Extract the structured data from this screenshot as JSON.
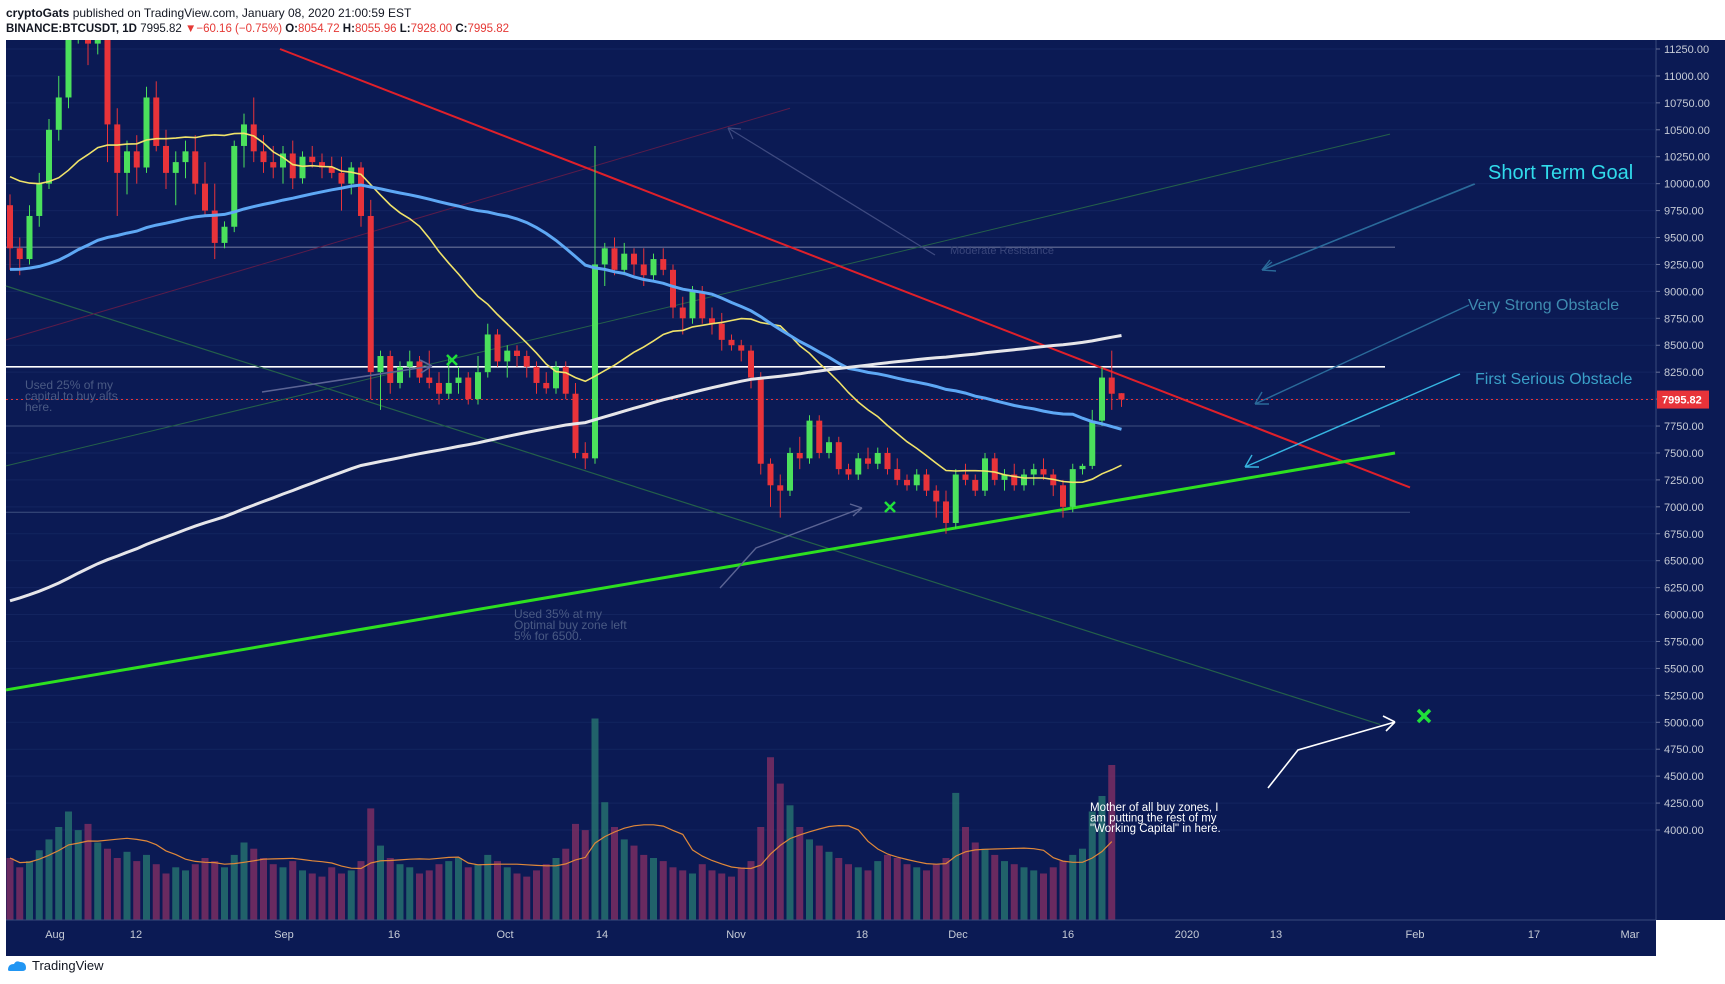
{
  "header": {
    "author": "cryptoGats",
    "published": "published on TradingView.com, January 08, 2020 21:00:59 EST",
    "symbol": "BINANCE:BTCUSDT, 1D",
    "last": "7995.82",
    "change": "−60.16 (−0.75%)",
    "o_label": "O:",
    "o": "8054.72",
    "h_label": "H:",
    "h": "8055.96",
    "l_label": "L:",
    "l": "7928.00",
    "c_label": "C:",
    "c": "7995.82"
  },
  "footer": {
    "brand": "TradingView"
  },
  "colors": {
    "background": "#0b1a54",
    "candle_up": "#4be05c",
    "candle_down": "#e8333a",
    "ma_yellow": "#f0e36a",
    "ma_blue": "#5ea8f5",
    "ma_white": "#e6e6ea",
    "trend_red": "#e0202a",
    "trend_green": "#2de020"
  },
  "chart_data": {
    "type": "candlestick",
    "y_axis_ticks": [
      "11250.00",
      "11000.00",
      "10750.00",
      "10500.00",
      "10250.00",
      "10000.00",
      "9750.00",
      "9500.00",
      "9250.00",
      "9000.00",
      "8750.00",
      "8500.00",
      "8250.00",
      "8000.00",
      "7750.00",
      "7500.00",
      "7250.00",
      "7000.00",
      "6750.00",
      "6500.00",
      "6250.00",
      "6000.00",
      "5750.00",
      "5500.00",
      "5250.00",
      "5000.00",
      "4750.00",
      "4500.00",
      "4250.00",
      "4000.00"
    ],
    "x_axis_labels": [
      "Aug",
      "12",
      "Sep",
      "16",
      "Oct",
      "14",
      "Nov",
      "18",
      "Dec",
      "16",
      "2020",
      "13",
      "Feb",
      "17",
      "Mar"
    ],
    "ylim": [
      3950,
      11380
    ],
    "last_price_label": "7995.82",
    "annotations": {
      "short_term_goal": "Short Term Goal",
      "very_strong_obstacle": "Very Strong Obstacle",
      "first_serious_obstacle": "First Serious Obstacle",
      "used25": [
        "Used 25% of my",
        "capital to buy alts",
        "here."
      ],
      "used35": [
        "Used 35% at my",
        "Optimal buy zone left",
        "5% for 6500."
      ],
      "mother": [
        "Mother of all buy zones, I",
        "am putting the rest of my",
        "\"Working Capital\" in here."
      ],
      "moderate_resistance": "Moderate Resistance"
    },
    "series": [
      {
        "name": "candles",
        "values": [
          [
            9800,
            9900,
            9200,
            9400
          ],
          [
            9400,
            9500,
            9150,
            9300
          ],
          [
            9300,
            9800,
            9250,
            9700
          ],
          [
            9700,
            10100,
            9600,
            10000
          ],
          [
            10000,
            10600,
            9950,
            10500
          ],
          [
            10500,
            11000,
            10400,
            10800
          ],
          [
            10800,
            11600,
            10700,
            11500
          ],
          [
            11500,
            12000,
            11300,
            11800
          ],
          [
            11800,
            11900,
            11100,
            11300
          ],
          [
            11300,
            11550,
            11200,
            11400
          ],
          [
            11400,
            11500,
            10200,
            10550
          ],
          [
            10550,
            10700,
            9700,
            10100
          ],
          [
            10100,
            10400,
            9900,
            10300
          ],
          [
            10300,
            10450,
            10000,
            10150
          ],
          [
            10150,
            10900,
            10100,
            10800
          ],
          [
            10800,
            10950,
            10300,
            10350
          ],
          [
            10350,
            10500,
            9950,
            10100
          ],
          [
            10100,
            10300,
            9800,
            10200
          ],
          [
            10200,
            10400,
            10050,
            10300
          ],
          [
            10300,
            10450,
            9900,
            10000
          ],
          [
            10000,
            10200,
            9700,
            9750
          ],
          [
            9750,
            10000,
            9300,
            9450
          ],
          [
            9450,
            9650,
            9400,
            9600
          ],
          [
            9600,
            10400,
            9550,
            10350
          ],
          [
            10350,
            10650,
            10150,
            10550
          ],
          [
            10550,
            10800,
            10200,
            10300
          ],
          [
            10300,
            10450,
            10100,
            10200
          ],
          [
            10200,
            10350,
            10050,
            10150
          ],
          [
            10150,
            10350,
            10000,
            10280
          ],
          [
            10280,
            10400,
            9950,
            10050
          ],
          [
            10050,
            10300,
            10000,
            10250
          ],
          [
            10250,
            10350,
            10150,
            10200
          ],
          [
            10200,
            10280,
            10050,
            10150
          ],
          [
            10150,
            10250,
            10050,
            10100
          ],
          [
            10100,
            10250,
            9750,
            10000
          ],
          [
            10000,
            10200,
            9900,
            10150
          ],
          [
            10150,
            10200,
            9600,
            9700
          ],
          [
            9700,
            9850,
            8000,
            8250
          ],
          [
            8250,
            8450,
            7900,
            8400
          ],
          [
            8400,
            8450,
            8050,
            8150
          ],
          [
            8150,
            8350,
            8100,
            8300
          ],
          [
            8300,
            8450,
            8200,
            8350
          ],
          [
            8350,
            8400,
            8150,
            8200
          ],
          [
            8200,
            8450,
            8100,
            8150
          ],
          [
            8150,
            8250,
            7950,
            8050
          ],
          [
            8050,
            8400,
            8000,
            8150
          ],
          [
            8150,
            8300,
            8050,
            8200
          ],
          [
            8200,
            8250,
            7950,
            8000
          ],
          [
            8000,
            8400,
            7950,
            8250
          ],
          [
            8250,
            8700,
            8200,
            8600
          ],
          [
            8600,
            8650,
            8300,
            8350
          ],
          [
            8350,
            8500,
            8200,
            8450
          ],
          [
            8450,
            8500,
            8300,
            8400
          ],
          [
            8400,
            8450,
            8200,
            8300
          ],
          [
            8300,
            8350,
            8050,
            8150
          ],
          [
            8150,
            8250,
            8050,
            8100
          ],
          [
            8100,
            8350,
            8050,
            8300
          ],
          [
            8300,
            8350,
            8000,
            8050
          ],
          [
            8050,
            8150,
            7450,
            7500
          ],
          [
            7500,
            7600,
            7350,
            7450
          ],
          [
            7450,
            10350,
            7400,
            9250
          ],
          [
            9250,
            9450,
            9050,
            9400
          ],
          [
            9400,
            9500,
            9150,
            9200
          ],
          [
            9200,
            9450,
            9150,
            9350
          ],
          [
            9350,
            9400,
            9150,
            9250
          ],
          [
            9250,
            9400,
            9050,
            9150
          ],
          [
            9150,
            9350,
            9100,
            9300
          ],
          [
            9300,
            9400,
            9150,
            9200
          ],
          [
            9200,
            9250,
            8750,
            8850
          ],
          [
            8850,
            8950,
            8600,
            8750
          ],
          [
            8750,
            9050,
            8700,
            9000
          ],
          [
            9000,
            9050,
            8700,
            8750
          ],
          [
            8750,
            8850,
            8600,
            8700
          ],
          [
            8700,
            8800,
            8450,
            8550
          ],
          [
            8550,
            8600,
            8450,
            8500
          ],
          [
            8500,
            8550,
            8350,
            8450
          ],
          [
            8450,
            8500,
            8100,
            8200
          ],
          [
            8200,
            8250,
            7300,
            7400
          ],
          [
            7400,
            7450,
            7000,
            7200
          ],
          [
            7200,
            7300,
            6900,
            7150
          ],
          [
            7150,
            7550,
            7100,
            7500
          ],
          [
            7500,
            7650,
            7350,
            7450
          ],
          [
            7450,
            7850,
            7400,
            7800
          ],
          [
            7800,
            7850,
            7450,
            7500
          ],
          [
            7500,
            7650,
            7450,
            7600
          ],
          [
            7600,
            7650,
            7300,
            7350
          ],
          [
            7350,
            7400,
            7250,
            7300
          ],
          [
            7300,
            7500,
            7250,
            7450
          ],
          [
            7450,
            7550,
            7350,
            7400
          ],
          [
            7400,
            7550,
            7350,
            7500
          ],
          [
            7500,
            7550,
            7300,
            7350
          ],
          [
            7350,
            7450,
            7200,
            7250
          ],
          [
            7250,
            7300,
            7150,
            7200
          ],
          [
            7200,
            7350,
            7150,
            7300
          ],
          [
            7300,
            7350,
            7100,
            7150
          ],
          [
            7150,
            7200,
            6900,
            7050
          ],
          [
            7050,
            7150,
            6750,
            6850
          ],
          [
            6850,
            7350,
            6800,
            7300
          ],
          [
            7300,
            7400,
            7200,
            7250
          ],
          [
            7250,
            7300,
            7100,
            7150
          ],
          [
            7150,
            7500,
            7100,
            7450
          ],
          [
            7450,
            7500,
            7200,
            7250
          ],
          [
            7250,
            7350,
            7150,
            7300
          ],
          [
            7300,
            7400,
            7150,
            7200
          ],
          [
            7200,
            7350,
            7150,
            7300
          ],
          [
            7300,
            7400,
            7200,
            7350
          ],
          [
            7350,
            7450,
            7250,
            7300
          ],
          [
            7300,
            7350,
            7100,
            7200
          ],
          [
            7200,
            7250,
            6900,
            7000
          ],
          [
            7000,
            7400,
            6950,
            7350
          ],
          [
            7350,
            7400,
            7300,
            7380
          ],
          [
            7380,
            7900,
            7350,
            7800
          ],
          [
            7800,
            8300,
            7750,
            8200
          ],
          [
            8200,
            8450,
            7900,
            8050
          ],
          [
            8054.72,
            8055.96,
            7928,
            7995.82
          ]
        ]
      },
      {
        "name": "volume",
        "values": [
          40,
          34,
          38,
          45,
          52,
          60,
          70,
          58,
          62,
          50,
          46,
          40,
          44,
          38,
          42,
          36,
          30,
          34,
          32,
          36,
          40,
          38,
          34,
          42,
          50,
          46,
          40,
          36,
          34,
          38,
          32,
          30,
          28,
          34,
          30,
          32,
          38,
          72,
          48,
          40,
          36,
          34,
          30,
          32,
          36,
          38,
          40,
          34,
          36,
          42,
          38,
          34,
          30,
          28,
          32,
          36,
          40,
          46,
          62,
          58,
          130,
          76,
          60,
          52,
          48,
          42,
          40,
          38,
          34,
          32,
          30,
          36,
          32,
          30,
          28,
          34,
          38,
          60,
          105,
          88,
          74,
          60,
          52,
          48,
          44,
          40,
          36,
          34,
          32,
          38,
          42,
          40,
          36,
          34,
          32,
          36,
          40,
          82,
          60,
          50,
          46,
          42,
          38,
          36,
          34,
          32,
          30,
          34,
          38,
          42,
          46,
          70,
          80,
          100
        ]
      }
    ]
  }
}
